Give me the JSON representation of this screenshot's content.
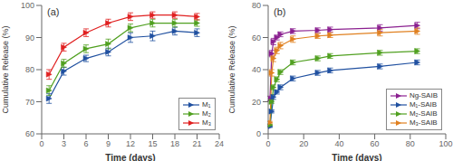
{
  "chart_data": [
    {
      "type": "line",
      "title": "(a)",
      "x_label": "Time (days)",
      "y_label": "Cumulative Release (%)",
      "xlim": [
        0,
        24
      ],
      "ylim": [
        60,
        100
      ],
      "xticks": [
        0,
        3,
        6,
        9,
        12,
        15,
        18,
        21,
        24
      ],
      "yticks": [
        60,
        70,
        80,
        90,
        100
      ],
      "grid": false,
      "legend": "lower right",
      "x": [
        1,
        3,
        6,
        9,
        12,
        15,
        18,
        21
      ],
      "series": [
        {
          "name": "M₁",
          "color": "#2050a0",
          "marker": "triangle-right",
          "values": [
            71.0,
            79.5,
            83.5,
            85.5,
            90.0,
            90.5,
            92.0,
            91.5
          ],
          "yerr": [
            1.5,
            1.2,
            1.0,
            1.2,
            1.5,
            1.5,
            1.2,
            1.2
          ]
        },
        {
          "name": "M₂",
          "color": "#50a020",
          "marker": "triangle-right",
          "values": [
            73.5,
            82.0,
            86.5,
            88.0,
            93.0,
            94.5,
            94.5,
            94.5
          ],
          "yerr": [
            1.5,
            1.2,
            1.2,
            1.5,
            1.2,
            1.2,
            1.2,
            1.0
          ]
        },
        {
          "name": "M₃",
          "color": "#e02020",
          "marker": "triangle-right",
          "values": [
            78.5,
            87.0,
            91.5,
            94.5,
            96.5,
            97.0,
            97.0,
            96.5
          ],
          "yerr": [
            1.5,
            1.2,
            1.2,
            1.2,
            1.2,
            1.0,
            1.0,
            1.0
          ]
        }
      ]
    },
    {
      "type": "line",
      "title": "(b)",
      "x_label": "Time (days)",
      "y_label": "Cumulative Release (%)",
      "xlim": [
        0,
        100
      ],
      "ylim": [
        0,
        80
      ],
      "xticks": [
        0,
        20,
        40,
        60,
        80,
        100
      ],
      "yticks": [
        0,
        20,
        40,
        60,
        80
      ],
      "grid": false,
      "legend": "lower right",
      "x": [
        1,
        2,
        3,
        5,
        7,
        14,
        28,
        35,
        63,
        84
      ],
      "series": [
        {
          "name": "Ng-SAIB",
          "color": "#8b2090",
          "marker": "triangle-right",
          "values": [
            22.0,
            50.0,
            57.5,
            60.0,
            62.0,
            64.0,
            64.5,
            65.0,
            66.0,
            67.5
          ],
          "yerr": [
            1.5,
            2.0,
            2.0,
            1.5,
            1.5,
            1.5,
            1.5,
            1.5,
            2.0,
            2.0
          ]
        },
        {
          "name": "M₁-SAIB",
          "color": "#2050a0",
          "marker": "triangle-right",
          "values": [
            4.5,
            14.0,
            23.0,
            26.0,
            29.0,
            34.5,
            38.0,
            39.5,
            42.0,
            44.5
          ],
          "yerr": [
            0.5,
            1.0,
            1.5,
            1.2,
            1.5,
            1.5,
            1.5,
            1.5,
            1.5,
            1.5
          ]
        },
        {
          "name": "M₂-SAIB",
          "color": "#50a020",
          "marker": "triangle-right",
          "values": [
            5.5,
            20.0,
            29.0,
            34.0,
            38.5,
            44.5,
            47.0,
            48.5,
            50.5,
            51.5
          ],
          "yerr": [
            0.5,
            1.0,
            1.5,
            1.5,
            1.5,
            1.5,
            1.5,
            1.5,
            1.5,
            1.5
          ]
        },
        {
          "name": "M₃-SAIB",
          "color": "#e08020",
          "marker": "triangle-right",
          "values": [
            7.0,
            38.0,
            47.0,
            52.0,
            55.0,
            59.0,
            61.0,
            61.5,
            63.0,
            64.0
          ],
          "yerr": [
            0.8,
            2.0,
            2.0,
            2.0,
            2.0,
            2.0,
            1.5,
            1.5,
            2.0,
            2.0
          ]
        }
      ]
    }
  ]
}
